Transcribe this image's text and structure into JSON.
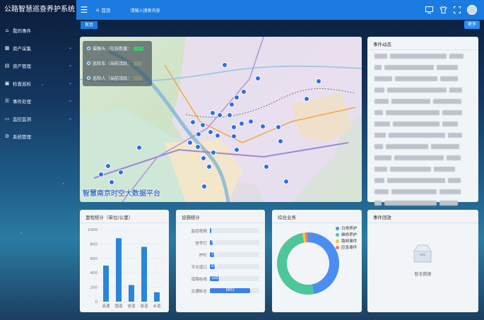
{
  "app": {
    "title": "公路智慧巡查养护系统"
  },
  "sidebar": {
    "items": [
      {
        "label": "我的事件",
        "icon": "home-icon"
      },
      {
        "label": "资产采集",
        "icon": "grid-icon"
      },
      {
        "label": "资产管理",
        "icon": "folder-icon"
      },
      {
        "label": "检查巡检",
        "icon": "doc-icon"
      },
      {
        "label": "事件处理",
        "icon": "list-icon"
      },
      {
        "label": "监控监测",
        "icon": "monitor-icon"
      },
      {
        "label": "系统管理",
        "icon": "gear-icon"
      }
    ]
  },
  "topbar": {
    "home_label": "首页",
    "search_placeholder": "请输入搜索内容"
  },
  "tabs": {
    "active": "首页",
    "more": "更多"
  },
  "map": {
    "legend": [
      {
        "label": "摄像头（在线数量：",
        "badge": "  "
      },
      {
        "label": "巡检车（当前活跃：",
        "badge": "  "
      },
      {
        "label": "巡检人（当前活跃：",
        "badge": "  "
      }
    ],
    "title": "智慧南京时空大数据平台"
  },
  "events_panel": {
    "title": "事件动态"
  },
  "mileage": {
    "title": "里程统计（单位/公里）",
    "chart_data": {
      "type": "bar",
      "categories": [
        "高速",
        "国道",
        "省道",
        "县道",
        "乡道"
      ],
      "values": [
        500,
        880,
        230,
        760,
        130
      ],
      "ylim": [
        0,
        1000
      ],
      "yticks": [
        0,
        200,
        400,
        600,
        800,
        1000
      ],
      "color": "#2a86d8"
    }
  },
  "facilities": {
    "title": "设施统计",
    "rows": [
      {
        "label": "监控视频",
        "value": ""
      },
      {
        "label": "信号灯",
        "value": "56"
      },
      {
        "label": "护栏",
        "value": "726"
      },
      {
        "label": "平交道口",
        "value": "833"
      },
      {
        "label": "道路标线",
        "value": "1682"
      },
      {
        "label": "交通标志",
        "value": "6852"
      }
    ]
  },
  "comprehensive": {
    "title": "综合业务",
    "chart_data": {
      "type": "pie",
      "series": [
        {
          "name": "日常养护",
          "value": 47,
          "color": "#4b8ef0"
        },
        {
          "name": "维修养护",
          "value": 50,
          "color": "#4fc59a"
        },
        {
          "name": "路网事件",
          "value": 1.5,
          "color": "#f3c24a"
        },
        {
          "name": "应急事件",
          "value": 1.5,
          "color": "#ef7a54"
        }
      ]
    }
  },
  "event_review": {
    "title": "事件回放",
    "empty_text": "暂无数据"
  }
}
